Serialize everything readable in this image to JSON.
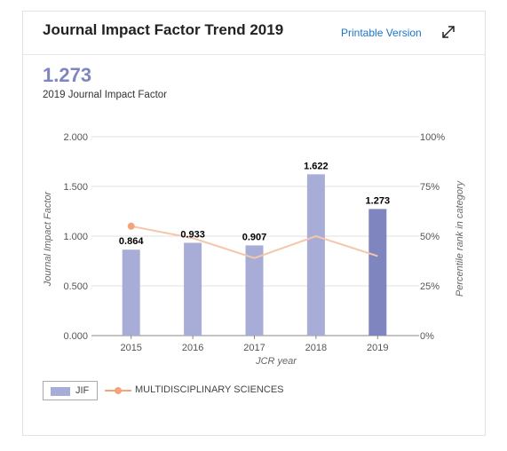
{
  "header": {
    "title": "Journal Impact Factor Trend 2019",
    "printable_label": "Printable Version",
    "expand_icon": "expand-arrows-icon"
  },
  "summary": {
    "jif_value": "1.273",
    "jif_label": "2019 Journal Impact Factor"
  },
  "colors": {
    "bar": "#a7add6",
    "bar_current": "#7e85bf",
    "line": "#f6c6ac",
    "marker": "#f4a37c",
    "grid": "#e0e0e0"
  },
  "chart_data": {
    "type": "bar",
    "categories": [
      "2015",
      "2016",
      "2017",
      "2018",
      "2019"
    ],
    "series": [
      {
        "name": "JIF",
        "values": [
          0.864,
          0.933,
          0.907,
          1.622,
          1.273
        ]
      },
      {
        "name": "MULTIDISCIPLINARY SCIENCES",
        "values": [
          55,
          49,
          39,
          50,
          40
        ],
        "type": "line",
        "axis": "right"
      }
    ],
    "data_labels": [
      "0.864",
      "0.933",
      "0.907",
      "1.622",
      "1.273"
    ],
    "ylabel": "Journal Impact Factor",
    "y2label": "Percentile rank in category",
    "xlabel": "JCR year",
    "ylim": [
      0,
      2
    ],
    "y2lim": [
      0,
      100
    ],
    "yticks": [
      "0.000",
      "0.500",
      "1.000",
      "1.500",
      "2.000"
    ],
    "y2ticks": [
      "0%",
      "25%",
      "50%",
      "75%",
      "100%"
    ],
    "grid": true,
    "legend": [
      "JIF",
      "MULTIDISCIPLINARY SCIENCES"
    ],
    "legend_position": "bottom-left"
  }
}
